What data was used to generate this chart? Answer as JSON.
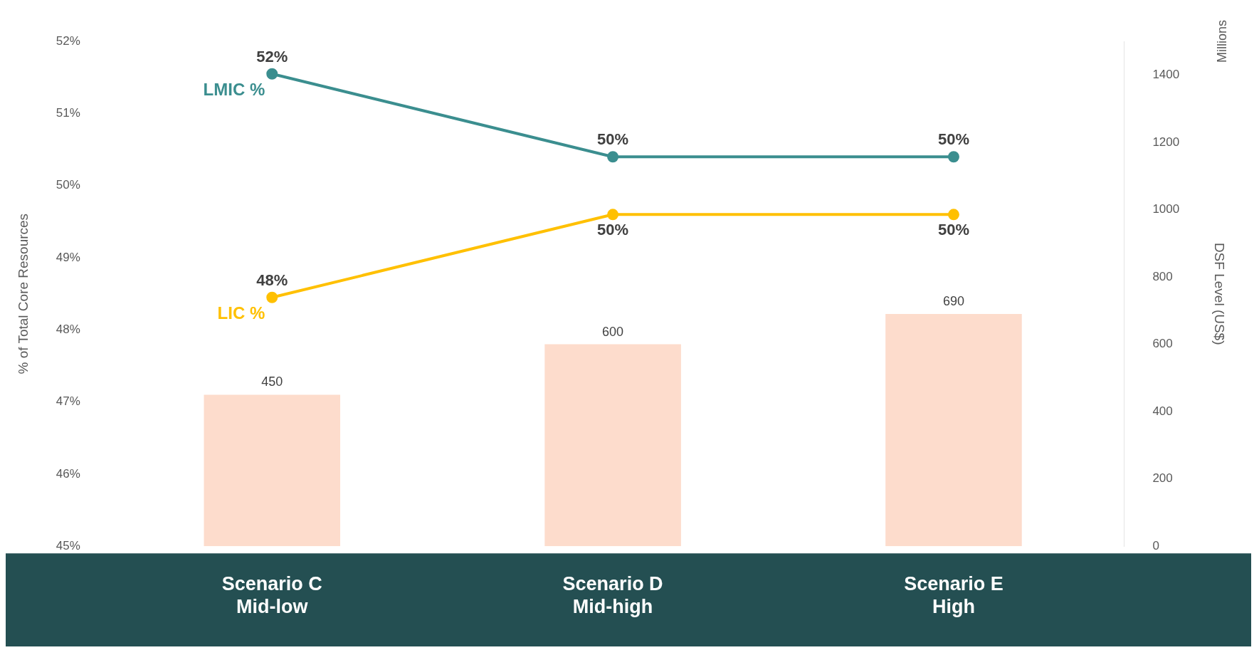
{
  "chart_data": {
    "type": "bar",
    "categories": [
      "Scenario C\nMid-low",
      "Scenario D\nMid-high",
      "Scenario E\nHigh"
    ],
    "series": [
      {
        "axis": "y2",
        "color": "#fddccc",
        "values": [
          450,
          600,
          690
        ],
        "value_labels": [
          "450",
          "600",
          "690"
        ]
      },
      {
        "type": "line",
        "name": "LMIC %",
        "color": "#3b8e8f",
        "values": [
          51.55,
          50.4,
          50.4
        ],
        "value_labels": [
          "52%",
          "50%",
          "50%"
        ]
      },
      {
        "type": "line",
        "name": "LIC %",
        "color": "#ffc000",
        "values": [
          48.45,
          49.6,
          49.6
        ],
        "value_labels": [
          "48%",
          "50%",
          "50%"
        ]
      }
    ],
    "ylabel": "% of Total Core Resources",
    "y2label": "DSF Level (US$)",
    "ylim": [
      45,
      52
    ],
    "yticks": [
      {
        "value": 45,
        "label": "45%"
      },
      {
        "value": 46,
        "label": "46%"
      },
      {
        "value": 47,
        "label": "47%"
      },
      {
        "value": 48,
        "label": "48%"
      },
      {
        "value": 49,
        "label": "49%"
      },
      {
        "value": 50,
        "label": "50%"
      },
      {
        "value": 51,
        "label": "51%"
      },
      {
        "value": 52,
        "label": "52%"
      }
    ],
    "y2lim": [
      0,
      1500
    ],
    "y2ticks": [
      0,
      200,
      400,
      600,
      800,
      1000,
      1200,
      1400
    ],
    "marker": "circle",
    "grid": false,
    "legend": false,
    "annotations": [
      "Millions"
    ]
  }
}
